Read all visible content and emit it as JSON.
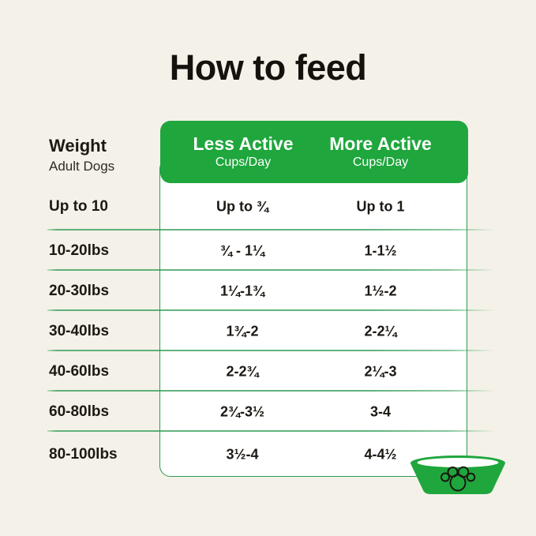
{
  "page": {
    "title": "How to feed",
    "background_color": "#f4f1e9",
    "accent_green": "#1fa63d",
    "text_color": "#1c1813"
  },
  "table": {
    "weight_header": {
      "label": "Weight",
      "sublabel": "Adult Dogs"
    },
    "columns": [
      {
        "label": "Less Active",
        "sublabel": "Cups/Day"
      },
      {
        "label": "More Active",
        "sublabel": "Cups/Day"
      }
    ],
    "rows": [
      {
        "weight": "Up to 10",
        "less_active": "Up to ¾",
        "more_active": "Up to 1"
      },
      {
        "weight": "10-20lbs",
        "less_active": "¾ - 1¼",
        "more_active": "1-1½"
      },
      {
        "weight": "20-30lbs",
        "less_active": "1¼-1¾",
        "more_active": "1½-2"
      },
      {
        "weight": "30-40lbs",
        "less_active": "1¾-2",
        "more_active": "2-2¼"
      },
      {
        "weight": "40-60lbs",
        "less_active": "2-2¾",
        "more_active": "2¼-3"
      },
      {
        "weight": "60-80lbs",
        "less_active": "2¾-3½",
        "more_active": "3-4"
      },
      {
        "weight": "80-100lbs",
        "less_active": "3½-4",
        "more_active": "4-4½"
      }
    ]
  },
  "icons": {
    "dog_bowl": "dog-bowl-with-paw-print-icon"
  },
  "chart_data": {
    "type": "table",
    "title": "How to feed",
    "columns": [
      "Weight (Adult Dogs)",
      "Less Active Cups/Day",
      "More Active Cups/Day"
    ],
    "rows": [
      [
        "Up to 10",
        "Up to ¾",
        "Up to 1"
      ],
      [
        "10-20lbs",
        "¾ - 1¼",
        "1-1½"
      ],
      [
        "20-30lbs",
        "1¼-1¾",
        "1½-2"
      ],
      [
        "30-40lbs",
        "1¾-2",
        "2-2¼"
      ],
      [
        "40-60lbs",
        "2-2¾",
        "2¼-3"
      ],
      [
        "60-80lbs",
        "2¾-3½",
        "3-4"
      ],
      [
        "80-100lbs",
        "3½-4",
        "4-4½"
      ]
    ]
  }
}
